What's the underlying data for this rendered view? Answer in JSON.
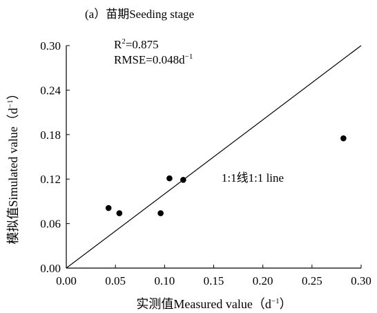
{
  "chart_data": {
    "type": "scatter",
    "title": "(a）苗期Seeding stage",
    "xlabel": "实测值Measured value（d",
    "ylabel": "模拟值Simulated value（d",
    "axis_unit_exponent": "−1",
    "axis_unit_close": "）",
    "xlim": [
      0.0,
      0.3
    ],
    "ylim": [
      0.0,
      0.3
    ],
    "x_ticks": [
      0.0,
      0.05,
      0.1,
      0.15,
      0.2,
      0.25,
      0.3
    ],
    "x_tick_labels": [
      "0.00",
      "0.05",
      "0.10",
      "0.15",
      "0.20",
      "0.25",
      "0.30"
    ],
    "y_ticks": [
      0.0,
      0.06,
      0.12,
      0.18,
      0.24,
      0.3
    ],
    "y_tick_labels": [
      "0.00",
      "0.06",
      "0.12",
      "0.18",
      "0.24",
      "0.30"
    ],
    "grid": false,
    "points": [
      {
        "x": 0.043,
        "y": 0.081
      },
      {
        "x": 0.054,
        "y": 0.074
      },
      {
        "x": 0.096,
        "y": 0.074
      },
      {
        "x": 0.105,
        "y": 0.121
      },
      {
        "x": 0.119,
        "y": 0.119
      },
      {
        "x": 0.282,
        "y": 0.175
      }
    ],
    "reference_line": {
      "label": "1:1线1:1 line",
      "from": [
        0.0,
        0.0
      ],
      "to": [
        0.3,
        0.3
      ]
    },
    "stats": {
      "r2_prefix": "R",
      "r2_sup": "2",
      "r2_value": "=0.875",
      "rmse_text": "RMSE=0.048d",
      "rmse_sup": "−1"
    },
    "colors": {
      "axis": "#000000",
      "points": "#000000",
      "line": "#000000"
    }
  }
}
